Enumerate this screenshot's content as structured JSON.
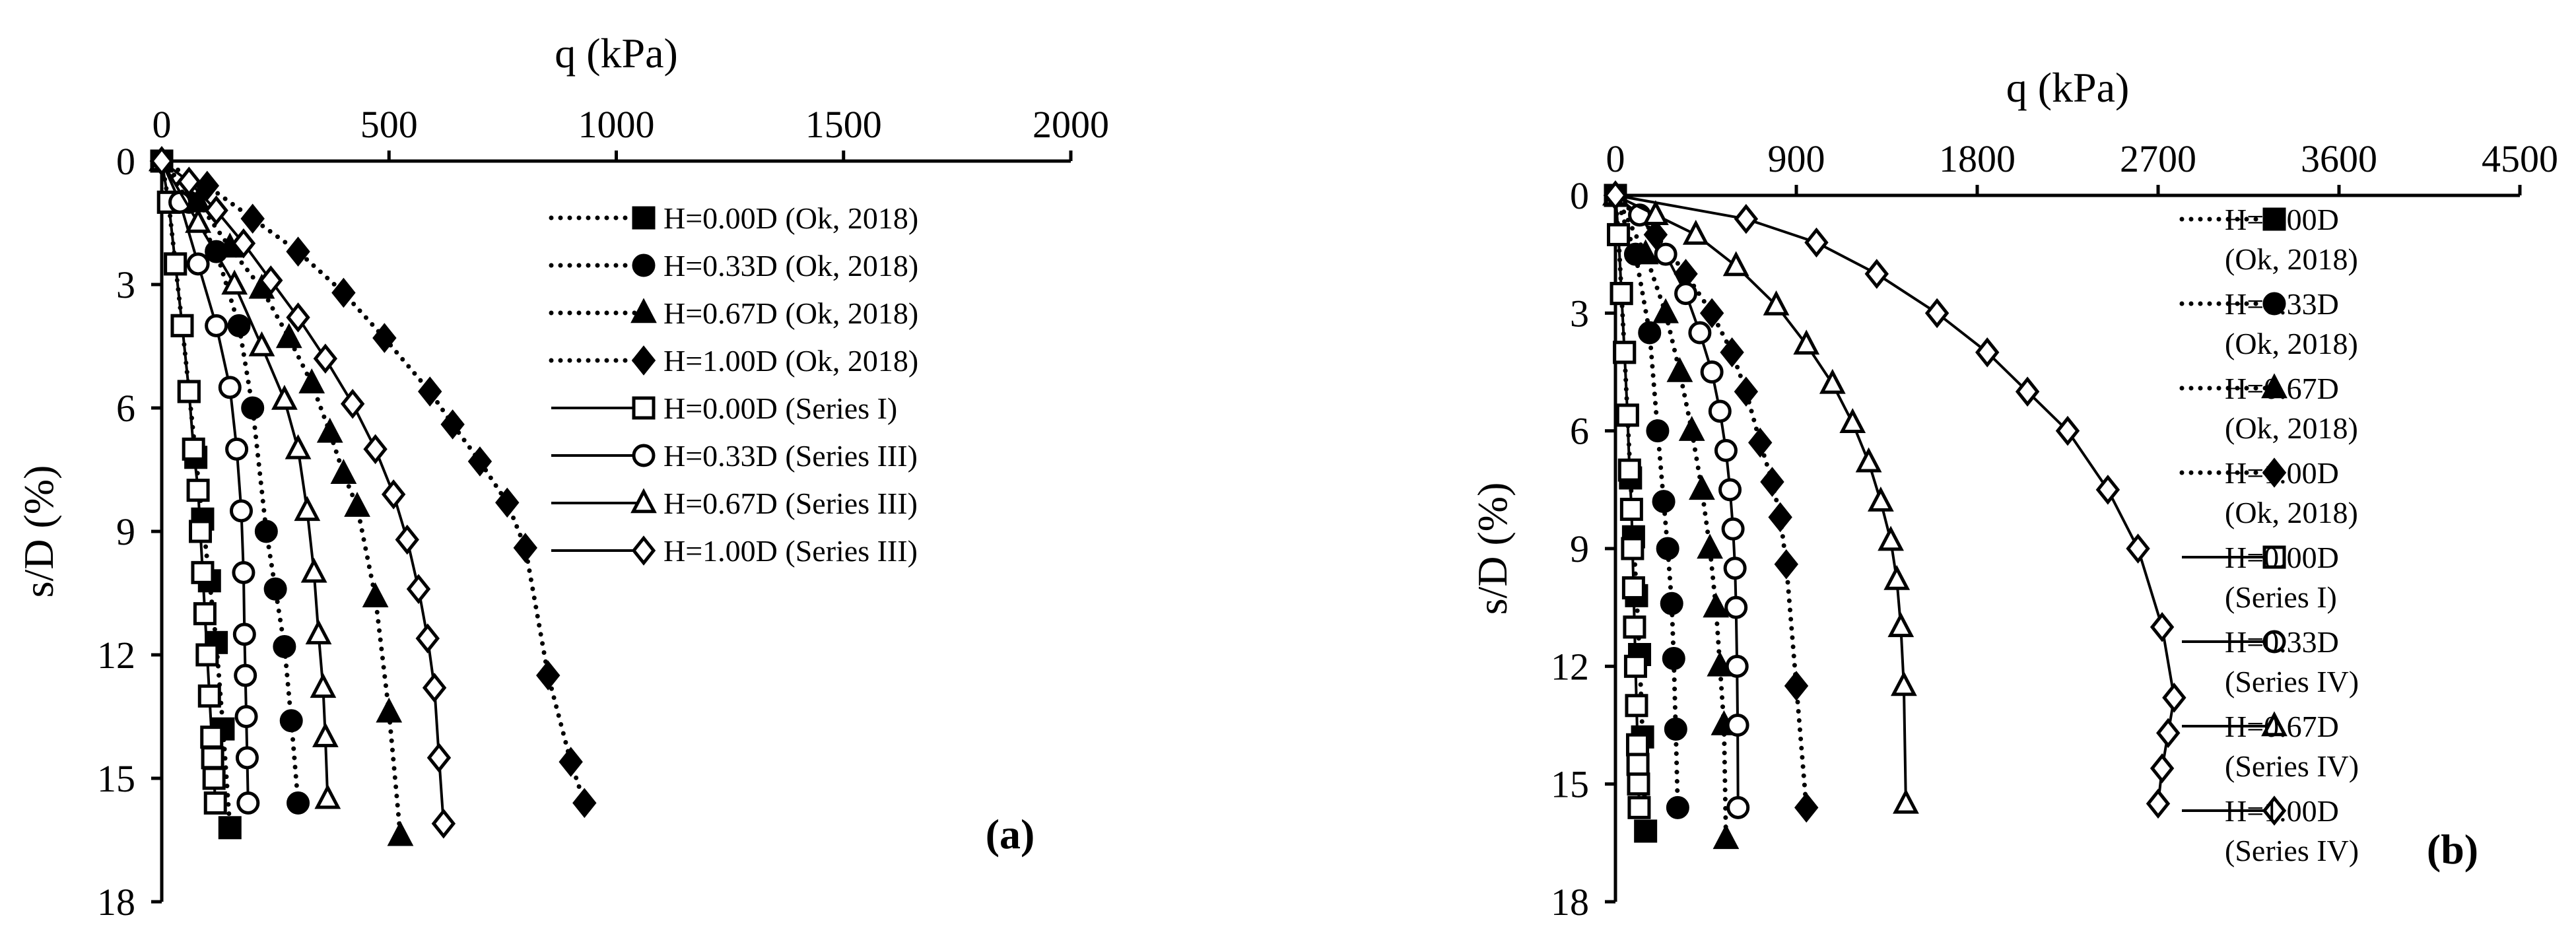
{
  "chart_data": [
    {
      "type": "scatter",
      "panel_label": "(a)",
      "xlabel": "q (kPa)",
      "ylabel": "s/D (%)",
      "xlim": [
        0,
        2000
      ],
      "ylim": [
        0,
        18
      ],
      "y_inverted": true,
      "x_axis_position": "top",
      "x_ticks": [
        "0",
        "500",
        "1000",
        "1500",
        "2000"
      ],
      "y_ticks": [
        "0",
        "3",
        "6",
        "9",
        "12",
        "15",
        "18"
      ],
      "grid": false,
      "legend_position": "top-right",
      "series": [
        {
          "name": "H=0.00D (Ok, 2018)",
          "marker": "square",
          "fill": "filled",
          "line": "dotted",
          "x": [
            0,
            15,
            30,
            45,
            60,
            75,
            90,
            105,
            120,
            135,
            150
          ],
          "y": [
            0,
            1.0,
            2.5,
            4.0,
            5.6,
            7.2,
            8.7,
            10.2,
            11.7,
            13.8,
            16.2
          ]
        },
        {
          "name": "H=0.33D  (Ok, 2018)",
          "marker": "circle",
          "fill": "filled",
          "line": "dotted",
          "x": [
            0,
            60,
            120,
            170,
            200,
            230,
            250,
            270,
            285,
            300
          ],
          "y": [
            0,
            1.0,
            2.2,
            4.0,
            6.0,
            9.0,
            10.4,
            11.8,
            13.6,
            15.6
          ]
        },
        {
          "name": "H=0.67D  (Ok, 2018)",
          "marker": "triangle",
          "fill": "filled",
          "line": "dotted",
          "x": [
            0,
            80,
            150,
            220,
            280,
            330,
            370,
            400,
            430,
            470,
            500,
            525
          ],
          "y": [
            0,
            1.0,
            2.1,
            3.1,
            4.3,
            5.4,
            6.6,
            7.6,
            8.4,
            10.6,
            13.4,
            16.4
          ]
        },
        {
          "name": "H=1.00D  (Ok, 2018)",
          "marker": "diamond",
          "fill": "filled",
          "line": "dotted",
          "x": [
            0,
            100,
            200,
            300,
            400,
            490,
            590,
            640,
            700,
            760,
            800,
            850,
            900,
            930
          ],
          "y": [
            0,
            0.6,
            1.4,
            2.2,
            3.2,
            4.3,
            5.6,
            6.4,
            7.3,
            8.3,
            9.4,
            12.5,
            14.6,
            15.6
          ]
        },
        {
          "name": "H=0.00D (Series I)",
          "marker": "square",
          "fill": "open",
          "line": "solid",
          "x": [
            0,
            15,
            30,
            45,
            60,
            70,
            80,
            85,
            90,
            95,
            100,
            105,
            110,
            112,
            115,
            118
          ],
          "y": [
            0,
            1.0,
            2.5,
            4.0,
            5.6,
            7.0,
            8.0,
            9.0,
            10.0,
            11.0,
            12.0,
            13.0,
            14.0,
            14.5,
            15.0,
            15.6
          ]
        },
        {
          "name": "H=0.33D (Series III)",
          "marker": "circle",
          "fill": "open",
          "line": "solid",
          "x": [
            0,
            40,
            80,
            120,
            150,
            165,
            175,
            180,
            182,
            184,
            186,
            188,
            190
          ],
          "y": [
            0,
            1.0,
            2.5,
            4.0,
            5.5,
            7.0,
            8.5,
            10.0,
            11.5,
            12.5,
            13.5,
            14.5,
            15.6
          ]
        },
        {
          "name": "H=0.67D (Series III)",
          "marker": "triangle",
          "fill": "open",
          "line": "solid",
          "x": [
            0,
            80,
            160,
            220,
            270,
            300,
            320,
            335,
            345,
            355,
            360,
            365
          ],
          "y": [
            0,
            1.5,
            3.0,
            4.5,
            5.8,
            7.0,
            8.5,
            10.0,
            11.5,
            12.8,
            14.0,
            15.5
          ]
        },
        {
          "name": "H=1.00D (Series III)",
          "marker": "diamond",
          "fill": "open",
          "line": "solid",
          "x": [
            0,
            60,
            120,
            180,
            240,
            300,
            360,
            420,
            470,
            510,
            540,
            565,
            585,
            600,
            610,
            620
          ],
          "y": [
            0,
            0.5,
            1.2,
            2.0,
            2.9,
            3.8,
            4.8,
            5.9,
            7.0,
            8.1,
            9.2,
            10.4,
            11.6,
            12.8,
            14.5,
            16.1
          ]
        }
      ]
    },
    {
      "type": "scatter",
      "panel_label": "(b)",
      "xlabel": "q (kPa)",
      "ylabel": "s/D (%)",
      "xlim": [
        0,
        4500
      ],
      "ylim": [
        0,
        18
      ],
      "y_inverted": true,
      "x_axis_position": "top",
      "x_ticks": [
        "0",
        "900",
        "1800",
        "2700",
        "3600",
        "4500"
      ],
      "y_ticks": [
        "0",
        "3",
        "6",
        "9",
        "12",
        "15",
        "18"
      ],
      "grid": false,
      "legend_position": "top-right",
      "series": [
        {
          "name": "H=0.00D (Ok, 2018)",
          "marker": "square",
          "fill": "filled",
          "line": "dotted",
          "x": [
            0,
            15,
            30,
            45,
            60,
            75,
            90,
            105,
            120,
            135,
            150
          ],
          "y": [
            0,
            1.0,
            2.5,
            4.0,
            5.6,
            7.2,
            8.7,
            10.2,
            11.7,
            13.8,
            16.2
          ]
        },
        {
          "name": "H=0.33D (Ok, 2018)",
          "marker": "circle",
          "fill": "filled",
          "line": "dotted",
          "x": [
            0,
            100,
            170,
            210,
            240,
            260,
            280,
            290,
            300,
            310
          ],
          "y": [
            0,
            1.5,
            3.5,
            6.0,
            7.8,
            9.0,
            10.4,
            11.8,
            13.6,
            15.6
          ]
        },
        {
          "name": "H=0.67D (Ok, 2018)",
          "marker": "triangle",
          "fill": "filled",
          "line": "dotted",
          "x": [
            0,
            150,
            250,
            320,
            380,
            430,
            470,
            500,
            520,
            540,
            550
          ],
          "y": [
            0,
            1.5,
            3.0,
            4.5,
            6.0,
            7.5,
            9.0,
            10.5,
            12.0,
            13.5,
            16.4
          ]
        },
        {
          "name": "H=1.00D (Ok, 2018)",
          "marker": "diamond",
          "fill": "filled",
          "line": "dotted",
          "x": [
            0,
            200,
            350,
            480,
            580,
            650,
            720,
            780,
            820,
            850,
            900,
            950
          ],
          "y": [
            0,
            1.0,
            2.0,
            3.0,
            4.0,
            5.0,
            6.3,
            7.3,
            8.2,
            9.4,
            12.5,
            15.6
          ]
        },
        {
          "name": "H=0.00D (Series I)",
          "marker": "square",
          "fill": "open",
          "line": "solid",
          "x": [
            0,
            15,
            30,
            45,
            60,
            70,
            80,
            85,
            90,
            95,
            100,
            105,
            110,
            112,
            115,
            118
          ],
          "y": [
            0,
            1.0,
            2.5,
            4.0,
            5.6,
            7.0,
            8.0,
            9.0,
            10.0,
            11.0,
            12.0,
            13.0,
            14.0,
            14.5,
            15.0,
            15.6
          ]
        },
        {
          "name": "H=0.33D (Series IV)",
          "marker": "circle",
          "fill": "open",
          "line": "solid",
          "x": [
            0,
            120,
            250,
            350,
            420,
            480,
            520,
            550,
            570,
            585,
            595,
            600,
            605,
            608,
            610
          ],
          "y": [
            0,
            0.5,
            1.5,
            2.5,
            3.5,
            4.5,
            5.5,
            6.5,
            7.5,
            8.5,
            9.5,
            10.5,
            12.0,
            13.5,
            15.6
          ]
        },
        {
          "name": "H=0.67D (Series IV)",
          "marker": "triangle",
          "fill": "open",
          "line": "solid",
          "x": [
            0,
            200,
            400,
            600,
            800,
            950,
            1080,
            1180,
            1260,
            1320,
            1370,
            1400,
            1420,
            1435,
            1445
          ],
          "y": [
            0,
            0.5,
            1.0,
            1.8,
            2.8,
            3.8,
            4.8,
            5.8,
            6.8,
            7.8,
            8.8,
            9.8,
            11.0,
            12.5,
            15.5
          ]
        },
        {
          "name": "H=1.00D (Series IV)",
          "marker": "diamond",
          "fill": "open",
          "line": "solid",
          "x": [
            0,
            650,
            1000,
            1300,
            1600,
            1850,
            2050,
            2250,
            2450,
            2600,
            2720,
            2780,
            2750,
            2720,
            2700
          ],
          "y": [
            0,
            0.6,
            1.2,
            2.0,
            3.0,
            4.0,
            5.0,
            6.0,
            7.5,
            9.0,
            11.0,
            12.8,
            13.7,
            14.6,
            15.5
          ]
        }
      ]
    }
  ]
}
